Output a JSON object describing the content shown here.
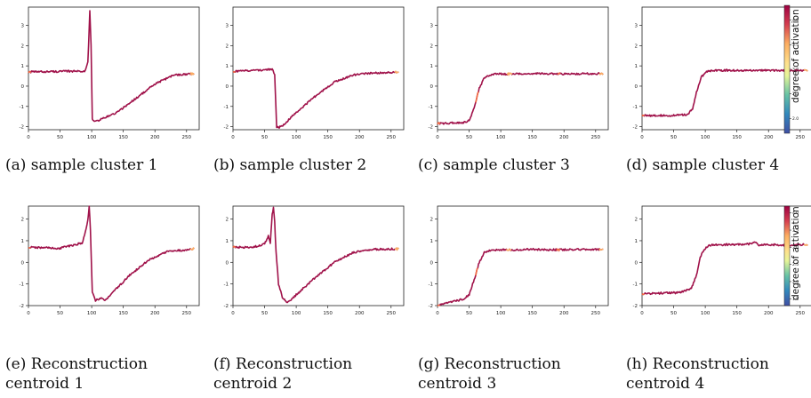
{
  "colorbar_label": "degree of activation",
  "captions": [
    {
      "line1": "(a) sample cluster 1",
      "line2": ""
    },
    {
      "line1": "(b) sample cluster 2",
      "line2": ""
    },
    {
      "line1": "(c) sample cluster 3",
      "line2": ""
    },
    {
      "line1": "(d) sample cluster 4",
      "line2": ""
    },
    {
      "line1": "(e) Reconstruction",
      "line2": "centroid 1"
    },
    {
      "line1": "(f) Reconstruction",
      "line2": "centroid 2"
    },
    {
      "line1": "(g) Reconstruction",
      "line2": "centroid 3"
    },
    {
      "line1": "(h) Reconstruction",
      "line2": "centroid 4"
    }
  ],
  "colors": {
    "line_main": "#a0124a",
    "line_high": "#f46d43",
    "line_mid": "#fdae61"
  },
  "chart_data": [
    {
      "type": "line",
      "xlim": [
        0,
        270
      ],
      "ylim": [
        -2.15,
        3.9
      ],
      "xticks": [
        "0",
        "50",
        "100",
        "150",
        "200",
        "250"
      ],
      "yticks": [
        "-2",
        "-1",
        "0",
        "1",
        "2",
        "3"
      ],
      "x": [
        0,
        90,
        94,
        97,
        99,
        101,
        104,
        110,
        140,
        170,
        200,
        230,
        262
      ],
      "y": [
        0.7,
        0.75,
        1.2,
        3.7,
        2.0,
        -1.6,
        -1.75,
        -1.7,
        -1.3,
        -0.6,
        0.1,
        0.55,
        0.62
      ]
    },
    {
      "type": "line",
      "xlim": [
        0,
        270
      ],
      "ylim": [
        -2.15,
        3.9
      ],
      "xticks": [
        "0",
        "50",
        "100",
        "150",
        "200",
        "250"
      ],
      "yticks": [
        "-2",
        "-1",
        "0",
        "1",
        "2",
        "3"
      ],
      "x": [
        0,
        30,
        62,
        66,
        69,
        72,
        80,
        100,
        130,
        160,
        190,
        220,
        262
      ],
      "y": [
        0.72,
        0.78,
        0.82,
        0.6,
        -2.0,
        -2.05,
        -1.9,
        -1.3,
        -0.5,
        0.2,
        0.55,
        0.65,
        0.7
      ]
    },
    {
      "type": "line",
      "xlim": [
        0,
        270
      ],
      "ylim": [
        -2.15,
        3.9
      ],
      "xticks": [
        "0",
        "50",
        "100",
        "150",
        "200",
        "250"
      ],
      "yticks": [
        "-2",
        "-1",
        "0",
        "1",
        "2",
        "3"
      ],
      "x": [
        0,
        40,
        50,
        58,
        66,
        74,
        82,
        92,
        120,
        160,
        200,
        262
      ],
      "y": [
        -1.85,
        -1.8,
        -1.7,
        -1.1,
        -0.1,
        0.4,
        0.55,
        0.6,
        0.6,
        0.62,
        0.6,
        0.62
      ]
    },
    {
      "type": "line",
      "xlim": [
        0,
        270
      ],
      "ylim": [
        -2.15,
        3.9
      ],
      "xticks": [
        "0",
        "50",
        "100",
        "150",
        "200",
        "250"
      ],
      "yticks": [
        "-2",
        "-1",
        "0",
        "1",
        "2",
        "3"
      ],
      "x": [
        0,
        50,
        72,
        80,
        86,
        94,
        102,
        112,
        140,
        180,
        220,
        262
      ],
      "y": [
        -1.45,
        -1.45,
        -1.4,
        -1.1,
        -0.3,
        0.45,
        0.72,
        0.78,
        0.78,
        0.78,
        0.78,
        0.78
      ]
    },
    {
      "type": "line",
      "xlim": [
        0,
        270
      ],
      "ylim": [
        -2.0,
        2.6
      ],
      "xticks": [
        "0",
        "50",
        "100",
        "150",
        "200",
        "250"
      ],
      "yticks": [
        "-2",
        "-1",
        "0",
        "1",
        "2"
      ],
      "x": [
        0,
        50,
        85,
        90,
        94,
        96,
        98,
        101,
        106,
        115,
        122,
        130,
        160,
        190,
        220,
        262
      ],
      "y": [
        0.7,
        0.65,
        0.9,
        1.4,
        2.0,
        2.6,
        1.5,
        -1.4,
        -1.75,
        -1.65,
        -1.75,
        -1.5,
        -0.6,
        0.1,
        0.5,
        0.62
      ]
    },
    {
      "type": "line",
      "xlim": [
        0,
        270
      ],
      "ylim": [
        -2.0,
        2.6
      ],
      "xticks": [
        "0",
        "50",
        "100",
        "150",
        "200",
        "250"
      ],
      "yticks": [
        "-2",
        "-1",
        "0",
        "1",
        "2"
      ],
      "x": [
        0,
        30,
        50,
        56,
        59,
        62,
        64,
        66,
        68,
        72,
        78,
        86,
        92,
        100,
        130,
        160,
        190,
        220,
        262
      ],
      "y": [
        0.7,
        0.68,
        0.85,
        1.2,
        0.9,
        2.2,
        2.55,
        1.9,
        0.5,
        -1.0,
        -1.6,
        -1.85,
        -1.75,
        -1.5,
        -0.7,
        0.0,
        0.45,
        0.6,
        0.62
      ]
    },
    {
      "type": "line",
      "xlim": [
        0,
        270
      ],
      "ylim": [
        -2.0,
        2.6
      ],
      "xticks": [
        "0",
        "50",
        "100",
        "150",
        "200",
        "250"
      ],
      "yticks": [
        "-2",
        "-1",
        "0",
        "1",
        "2"
      ],
      "x": [
        0,
        20,
        40,
        50,
        58,
        66,
        74,
        82,
        92,
        120,
        150,
        180,
        220,
        262
      ],
      "y": [
        -2.0,
        -1.85,
        -1.7,
        -1.5,
        -0.8,
        0.0,
        0.45,
        0.55,
        0.58,
        0.58,
        0.6,
        0.58,
        0.6,
        0.6
      ]
    },
    {
      "type": "line",
      "xlim": [
        0,
        270
      ],
      "ylim": [
        -2.0,
        2.6
      ],
      "xticks": [
        "0",
        "50",
        "100",
        "150",
        "200",
        "250"
      ],
      "yticks": [
        "-2",
        "-1",
        "0",
        "1",
        "2"
      ],
      "x": [
        0,
        60,
        78,
        86,
        92,
        98,
        106,
        116,
        140,
        170,
        180,
        185,
        200,
        230,
        262
      ],
      "y": [
        -1.45,
        -1.4,
        -1.2,
        -0.6,
        0.2,
        0.6,
        0.78,
        0.82,
        0.82,
        0.85,
        0.95,
        0.8,
        0.82,
        0.8,
        0.82
      ]
    }
  ],
  "colorbars": [
    {
      "ticks": [
        "2.0",
        "2.5",
        "3.0",
        "3.5",
        "4.0"
      ],
      "vmin": 1.7,
      "vmax": 4.3
    },
    {
      "ticks": [
        "1.5",
        "2.0",
        "2.5",
        "3.0",
        "3.5",
        "4.0"
      ],
      "vmin": 1.3,
      "vmax": 4.2
    }
  ]
}
